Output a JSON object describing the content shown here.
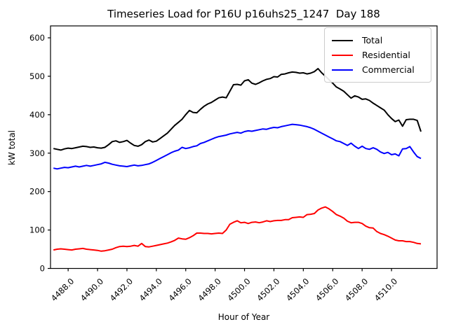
{
  "title": "Timeseries Load for P16U p16uhs25_1247  Day 188",
  "chart_data": {
    "type": "line",
    "title": "Timeseries Load for P16U p16uhs25_1247  Day 188",
    "xlabel": "Hour of Year",
    "ylabel": "kW total",
    "xlim": [
      4486.8,
      4513.1
    ],
    "ylim": [
      0,
      631
    ],
    "grid": false,
    "legend_position": "upper right",
    "x_tick_labels": [
      "4488.0",
      "4490.0",
      "4492.0",
      "4494.0",
      "4496.0",
      "4498.0",
      "4500.0",
      "4502.0",
      "4504.0",
      "4506.0",
      "4508.0",
      "4510.0"
    ],
    "x_tick_values": [
      4488,
      4490,
      4492,
      4494,
      4496,
      4498,
      4500,
      4502,
      4504,
      4506,
      4508,
      4510
    ],
    "y_tick_labels": [
      "0",
      "100",
      "200",
      "300",
      "400",
      "500",
      "600"
    ],
    "y_tick_values": [
      0,
      100,
      200,
      300,
      400,
      500,
      600
    ],
    "x_start": 4487.0,
    "x_step": 0.25,
    "series": [
      {
        "name": "Total",
        "color": "#000000",
        "values": [
          312,
          310,
          308,
          311,
          313,
          312,
          314,
          316,
          318,
          317,
          315,
          316,
          314,
          313,
          315,
          322,
          330,
          332,
          328,
          330,
          333,
          326,
          320,
          318,
          322,
          330,
          334,
          329,
          331,
          338,
          345,
          352,
          362,
          372,
          380,
          388,
          400,
          411,
          406,
          405,
          414,
          422,
          428,
          432,
          438,
          444,
          446,
          444,
          461,
          478,
          479,
          477,
          488,
          491,
          482,
          479,
          483,
          488,
          492,
          494,
          499,
          498,
          505,
          506,
          509,
          511,
          510,
          508,
          509,
          506,
          508,
          512,
          520,
          509,
          500,
          491,
          482,
          472,
          467,
          461,
          452,
          443,
          449,
          446,
          440,
          441,
          437,
          430,
          424,
          418,
          412,
          400,
          390,
          382,
          386,
          370,
          387,
          388,
          388,
          385,
          356
        ]
      },
      {
        "name": "Residential",
        "color": "#ff0000",
        "values": [
          48,
          50,
          51,
          50,
          49,
          48,
          50,
          51,
          52,
          50,
          49,
          48,
          47,
          45,
          46,
          48,
          50,
          54,
          57,
          58,
          57,
          58,
          60,
          58,
          65,
          57,
          56,
          58,
          60,
          62,
          64,
          66,
          69,
          73,
          79,
          77,
          76,
          80,
          85,
          92,
          92,
          91,
          91,
          90,
          91,
          92,
          91,
          100,
          115,
          120,
          124,
          119,
          120,
          117,
          120,
          121,
          119,
          121,
          124,
          122,
          124,
          125,
          125,
          127,
          127,
          132,
          133,
          134,
          133,
          140,
          141,
          143,
          152,
          157,
          160,
          155,
          148,
          140,
          136,
          131,
          123,
          119,
          120,
          120,
          117,
          110,
          106,
          105,
          96,
          91,
          88,
          84,
          79,
          74,
          72,
          72,
          70,
          70,
          68,
          65,
          64
        ]
      },
      {
        "name": "Commercial",
        "color": "#0000ff",
        "values": [
          261,
          259,
          261,
          263,
          262,
          264,
          266,
          264,
          266,
          268,
          266,
          268,
          270,
          272,
          276,
          274,
          271,
          269,
          267,
          266,
          265,
          267,
          269,
          267,
          268,
          270,
          272,
          276,
          281,
          286,
          291,
          296,
          301,
          305,
          308,
          315,
          312,
          314,
          317,
          319,
          325,
          328,
          332,
          336,
          340,
          343,
          345,
          347,
          350,
          352,
          354,
          352,
          356,
          358,
          357,
          359,
          361,
          363,
          362,
          365,
          367,
          366,
          369,
          371,
          373,
          375,
          374,
          373,
          371,
          369,
          366,
          362,
          357,
          352,
          347,
          342,
          337,
          332,
          330,
          325,
          320,
          326,
          318,
          312,
          318,
          312,
          310,
          314,
          310,
          303,
          299,
          302,
          296,
          298,
          293,
          311,
          312,
          317,
          303,
          291,
          286
        ]
      }
    ]
  }
}
